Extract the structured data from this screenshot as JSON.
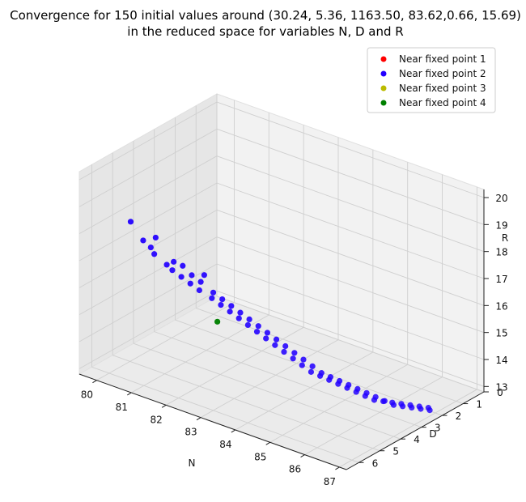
{
  "chart_data": {
    "type": "scatter",
    "projection": "3d",
    "title": "Convergence for 150 initial values around (30.24, 5.36, 1163.50, 83.62,0.66, 15.69)",
    "subtitle": "in the reduced space for variables N, D and R",
    "xlabel": "N",
    "ylabel": "D",
    "zlabel": "R",
    "xlim": [
      79.5,
      87.2
    ],
    "ylim": [
      0,
      6.6
    ],
    "zlim": [
      12.8,
      20.3
    ],
    "x_ticks": [
      "80",
      "81",
      "82",
      "83",
      "84",
      "85",
      "86",
      "87"
    ],
    "y_ticks": [
      "0",
      "1",
      "2",
      "3",
      "4",
      "5",
      "6"
    ],
    "z_ticks": [
      "13",
      "14",
      "15",
      "16",
      "17",
      "18",
      "19",
      "20"
    ],
    "grid": true,
    "legend_position": "top-right",
    "series": [
      {
        "name": "Near fixed point 1",
        "color": "#ff0000",
        "points": []
      },
      {
        "name": "Near fixed point 2",
        "color": "#2200ff",
        "points": [
          [
            80.2,
            5.3,
            18.2
          ],
          [
            80.5,
            5.2,
            17.6
          ],
          [
            80.6,
            5.0,
            17.3
          ],
          [
            80.7,
            5.0,
            17.1
          ],
          [
            80.8,
            5.1,
            17.8
          ],
          [
            81.0,
            4.9,
            16.8
          ],
          [
            81.1,
            4.8,
            16.6
          ],
          [
            81.2,
            4.9,
            17.0
          ],
          [
            81.3,
            4.7,
            16.4
          ],
          [
            81.4,
            4.8,
            16.9
          ],
          [
            81.5,
            4.6,
            16.2
          ],
          [
            81.6,
            4.7,
            16.6
          ],
          [
            81.7,
            4.5,
            16.0
          ],
          [
            81.8,
            4.6,
            16.4
          ],
          [
            81.9,
            4.6,
            16.7
          ],
          [
            82.0,
            4.4,
            15.8
          ],
          [
            82.1,
            4.5,
            16.1
          ],
          [
            82.2,
            4.3,
            15.6
          ],
          [
            82.3,
            4.4,
            15.9
          ],
          [
            82.4,
            4.2,
            15.4
          ],
          [
            82.5,
            4.3,
            15.7
          ],
          [
            82.6,
            4.1,
            15.2
          ],
          [
            82.7,
            4.2,
            15.5
          ],
          [
            82.8,
            4.0,
            15.0
          ],
          [
            82.9,
            4.1,
            15.3
          ],
          [
            83.0,
            3.9,
            14.8
          ],
          [
            83.1,
            4.0,
            15.1
          ],
          [
            83.2,
            3.8,
            14.6
          ],
          [
            83.3,
            3.9,
            14.9
          ],
          [
            83.4,
            3.7,
            14.4
          ],
          [
            83.5,
            3.8,
            14.7
          ],
          [
            83.6,
            3.6,
            14.2
          ],
          [
            83.7,
            3.7,
            14.5
          ],
          [
            83.8,
            3.5,
            14.0
          ],
          [
            83.9,
            3.6,
            14.3
          ],
          [
            84.0,
            3.4,
            13.8
          ],
          [
            84.1,
            3.5,
            14.1
          ],
          [
            84.2,
            3.3,
            13.6
          ],
          [
            84.3,
            3.4,
            13.9
          ],
          [
            84.4,
            3.2,
            13.5
          ],
          [
            84.5,
            3.3,
            13.7
          ],
          [
            84.6,
            3.1,
            13.4
          ],
          [
            84.7,
            3.2,
            13.6
          ],
          [
            84.8,
            3.0,
            13.3
          ],
          [
            84.9,
            3.1,
            13.5
          ],
          [
            85.0,
            2.9,
            13.2
          ],
          [
            85.1,
            3.0,
            13.4
          ],
          [
            85.2,
            2.8,
            13.1
          ],
          [
            85.3,
            2.9,
            13.3
          ],
          [
            85.4,
            2.7,
            13.0
          ],
          [
            85.5,
            2.8,
            13.2
          ],
          [
            85.6,
            2.6,
            12.9
          ],
          [
            85.7,
            2.7,
            13.1
          ],
          [
            85.8,
            2.5,
            12.9
          ],
          [
            85.9,
            2.6,
            13.0
          ],
          [
            86.0,
            2.4,
            12.9
          ],
          [
            86.1,
            2.5,
            12.9
          ],
          [
            86.2,
            2.3,
            12.9
          ],
          [
            86.3,
            2.4,
            12.9
          ],
          [
            86.4,
            2.2,
            12.9
          ],
          [
            86.5,
            2.3,
            12.9
          ],
          [
            86.6,
            2.1,
            12.9
          ],
          [
            86.7,
            2.2,
            12.9
          ],
          [
            86.8,
            2.0,
            12.9
          ],
          [
            86.9,
            2.1,
            12.9
          ]
        ]
      },
      {
        "name": "Near fixed point 3",
        "color": "#bbbb00",
        "points": []
      },
      {
        "name": "Near fixed point 4",
        "color": "#008000",
        "points": [
          [
            83.0,
            5.8,
            16.0
          ]
        ]
      }
    ]
  }
}
